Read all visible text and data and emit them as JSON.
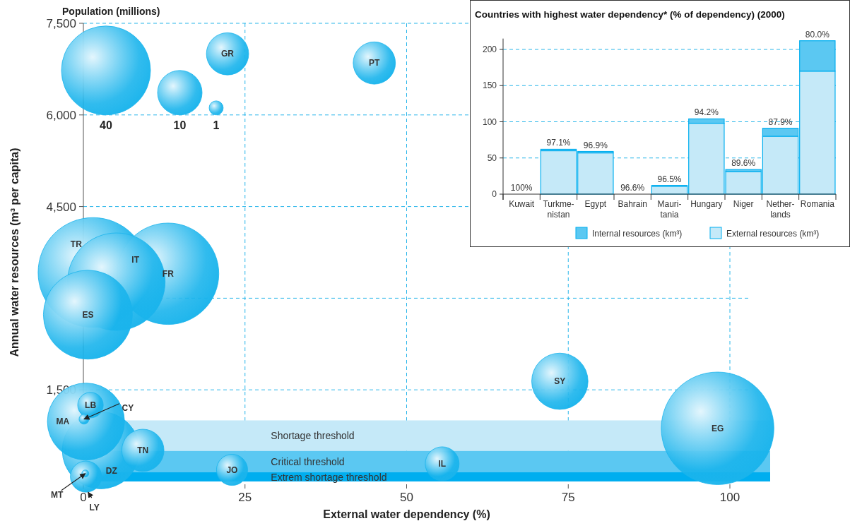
{
  "chart_data": [
    {
      "type": "bubble",
      "xlabel": "External water dependency (%)",
      "ylabel": "Annual water resources (m³ per capita)",
      "legend_title": "Population (millions)",
      "size_legend": [
        1,
        10,
        40
      ],
      "xlim": [
        0,
        100
      ],
      "xticks": [
        0,
        25,
        50,
        75,
        100
      ],
      "ylim": [
        0,
        7500
      ],
      "yticks": [
        {
          "value": 1500,
          "label": "1,500"
        },
        {
          "value": 3000,
          "label": null
        },
        {
          "value": 4500,
          "label": "4,500"
        },
        {
          "value": 6000,
          "label": "6,000"
        },
        {
          "value": 7500,
          "label": "7,500"
        }
      ],
      "grid": true,
      "bands": [
        {
          "axis": "y",
          "from": 500,
          "to": 1000,
          "label": "Shortage threshold",
          "color": "#c5e9f8"
        },
        {
          "axis": "y",
          "from": 150,
          "to": 500,
          "label": "Critical threshold",
          "color": "#5bc8f2"
        },
        {
          "axis": "y",
          "from": 0,
          "to": 150,
          "label": "Extrem shortage threshold",
          "color": "#00aeef"
        }
      ],
      "series": [
        {
          "name": "TR",
          "color": "#1ab4ec",
          "x": [
            1.5
          ],
          "values": [
            3420
          ],
          "sizes": [
            61
          ]
        },
        {
          "name": "FR",
          "color": "#1ab4ec",
          "x": [
            13.1
          ],
          "values": [
            3400
          ],
          "sizes": [
            52
          ]
        },
        {
          "name": "IT",
          "color": "#1ab4ec",
          "x": [
            5.1
          ],
          "values": [
            3270
          ],
          "sizes": [
            48
          ]
        },
        {
          "name": "ES",
          "color": "#1ab4ec",
          "x": [
            0.7
          ],
          "values": [
            2730
          ],
          "sizes": [
            40
          ]
        },
        {
          "name": "GR",
          "color": "#1ab4ec",
          "x": [
            22.3
          ],
          "values": [
            7000
          ],
          "sizes": [
            9
          ]
        },
        {
          "name": "PT",
          "color": "#1ab4ec",
          "x": [
            45
          ],
          "values": [
            6850
          ],
          "sizes": [
            9
          ]
        },
        {
          "name": "SY",
          "color": "#1ab4ec",
          "x": [
            73.7
          ],
          "values": [
            1640
          ],
          "sizes": [
            16
          ]
        },
        {
          "name": "EG",
          "color": "#1ab4ec",
          "x": [
            98.1
          ],
          "values": [
            870
          ],
          "sizes": [
            64
          ]
        },
        {
          "name": "DZ",
          "color": "#1ab4ec",
          "x": [
            2.7
          ],
          "values": [
            510
          ],
          "sizes": [
            30
          ]
        },
        {
          "name": "MA",
          "color": "#1ab4ec",
          "x": [
            0.4
          ],
          "values": [
            980
          ],
          "sizes": [
            30
          ]
        },
        {
          "name": "LB",
          "color": "#1ab4ec",
          "x": [
            1.1
          ],
          "values": [
            1250
          ],
          "sizes": [
            3.3
          ]
        },
        {
          "name": "CY",
          "color": "#1ab4ec",
          "x": [
            0.1
          ],
          "values": [
            1020
          ],
          "sizes": [
            0.5
          ]
        },
        {
          "name": "TN",
          "color": "#1ab4ec",
          "x": [
            9.2
          ],
          "values": [
            510
          ],
          "sizes": [
            9
          ]
        },
        {
          "name": "LY",
          "color": "#1ab4ec",
          "x": [
            0.4
          ],
          "values": [
            80
          ],
          "sizes": [
            4.9
          ]
        },
        {
          "name": "MT",
          "color": "#1ab4ec",
          "x": [
            0.3
          ],
          "values": [
            130
          ],
          "sizes": [
            0.25
          ]
        },
        {
          "name": "JO",
          "color": "#1ab4ec",
          "x": [
            23
          ],
          "values": [
            190
          ],
          "sizes": [
            4.9
          ]
        },
        {
          "name": "IL",
          "color": "#1ab4ec",
          "x": [
            55.5
          ],
          "values": [
            290
          ],
          "sizes": [
            5.8
          ]
        }
      ]
    },
    {
      "type": "bar",
      "title": "Countries with highest water dependency* (% of dependency) (2000)",
      "stacked": true,
      "legend": "bottom right",
      "grid": "y",
      "categories": [
        "Kuwait",
        "Turkme-\nnistan",
        "Egypt",
        "Bahrain",
        "Mauri-\ntania",
        "Hungary",
        "Niger",
        "Nether-\nlands",
        "Romania"
      ],
      "ylim": [
        0,
        215
      ],
      "yticks": [
        0,
        50,
        100,
        150,
        200
      ],
      "series": [
        {
          "name": "External resources (km³)",
          "color": "#c5e9f8",
          "values": [
            0,
            60,
            57,
            0,
            11,
            98,
            31,
            80,
            170
          ]
        },
        {
          "name": "Internal resources (km³)",
          "color": "#5bc8f2",
          "values": [
            0,
            2,
            2,
            0,
            1,
            6,
            3,
            11,
            42
          ]
        }
      ],
      "annotations": [
        {
          "text": "100%",
          "x": "Kuwait",
          "y": 0
        },
        {
          "text": "97.1%",
          "x": "Turkme-\nnistan",
          "y": 62
        },
        {
          "text": "96.9%",
          "x": "Egypt",
          "y": 59
        },
        {
          "text": "96.6%",
          "x": "Bahrain",
          "y": 0
        },
        {
          "text": "96.5%",
          "x": "Mauri-\ntania",
          "y": 12
        },
        {
          "text": "94.2%",
          "x": "Hungary",
          "y": 104
        },
        {
          "text": "89.6%",
          "x": "Niger",
          "y": 34
        },
        {
          "text": "87.9%",
          "x": "Nether-\nlands",
          "y": 91
        },
        {
          "text": "80.0%",
          "x": "Romania",
          "y": 212
        }
      ]
    }
  ]
}
